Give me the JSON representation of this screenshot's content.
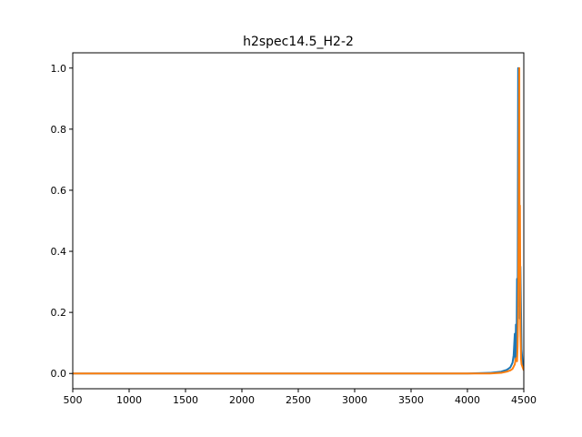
{
  "chart_data": {
    "type": "line",
    "title": "h2spec14.5_H2-2",
    "xlabel": "",
    "ylabel": "",
    "xlim": [
      500,
      4500
    ],
    "ylim": [
      -0.05,
      1.05
    ],
    "x_ticks": [
      500,
      1000,
      1500,
      2000,
      2500,
      3000,
      3500,
      4000,
      4500
    ],
    "x_tick_labels": [
      "500",
      "1000",
      "1500",
      "2000",
      "2500",
      "3000",
      "3500",
      "4000",
      "4500"
    ],
    "y_ticks": [
      0.0,
      0.2,
      0.4,
      0.6,
      0.8,
      1.0
    ],
    "y_tick_labels": [
      "0.0",
      "0.2",
      "0.4",
      "0.6",
      "0.8",
      "1.0"
    ],
    "grid": false,
    "legend": "none",
    "series": [
      {
        "color": "#1f77b4",
        "x": [
          500,
          1500,
          2500,
          3500,
          4000,
          4200,
          4300,
          4350,
          4380,
          4400,
          4410,
          4420,
          4425,
          4430,
          4435,
          4440,
          4445,
          4450,
          4455,
          4460,
          4465,
          4470,
          4480,
          4490,
          4500
        ],
        "y": [
          0.0,
          0.0,
          0.0,
          0.0,
          0.0,
          0.002,
          0.006,
          0.012,
          0.02,
          0.035,
          0.06,
          0.13,
          0.04,
          0.16,
          0.05,
          0.31,
          0.12,
          1.0,
          0.22,
          0.6,
          0.18,
          0.35,
          0.08,
          0.03,
          0.02
        ]
      },
      {
        "color": "#ff7f0e",
        "x": [
          500,
          1500,
          2500,
          3500,
          4000,
          4200,
          4300,
          4350,
          4380,
          4400,
          4420,
          4430,
          4440,
          4445,
          4450,
          4455,
          4460,
          4463,
          4466,
          4470,
          4475,
          4480,
          4490,
          4500
        ],
        "y": [
          0.0,
          0.0,
          0.0,
          0.0,
          0.0,
          0.0,
          0.002,
          0.006,
          0.01,
          0.015,
          0.03,
          0.05,
          0.04,
          0.09,
          0.2,
          0.53,
          1.0,
          0.3,
          0.55,
          0.15,
          0.05,
          0.03,
          0.02,
          0.01
        ]
      }
    ]
  }
}
